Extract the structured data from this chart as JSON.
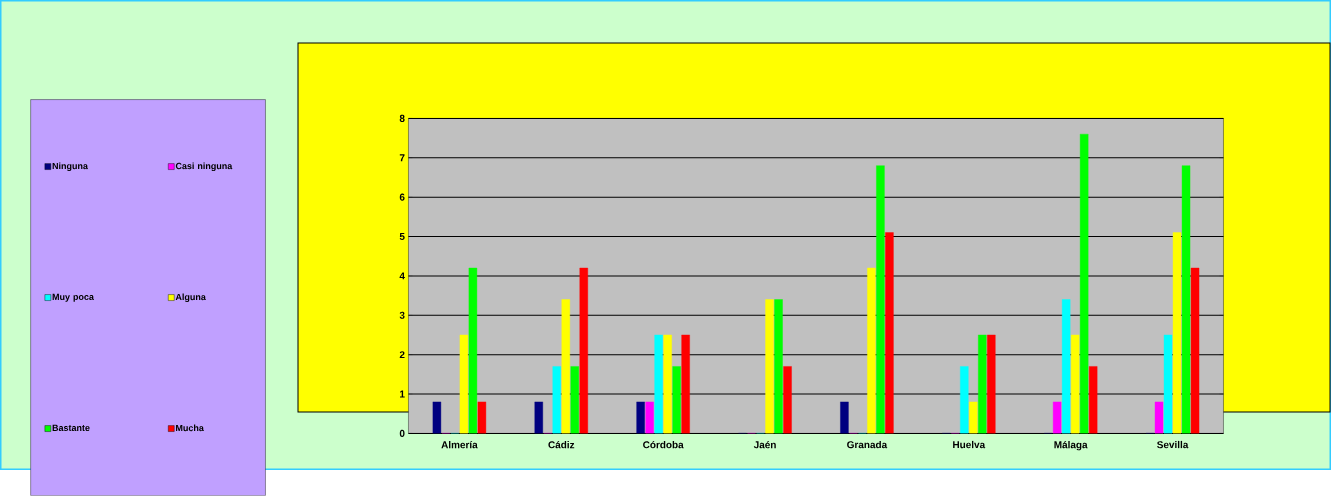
{
  "chart_data": {
    "type": "bar",
    "categories": [
      "Almería",
      "Cádiz",
      "Córdoba",
      "Jaén",
      "Granada",
      "Huelva",
      "Málaga",
      "Sevilla"
    ],
    "series": [
      {
        "name": "Ninguna",
        "color": "#000080",
        "values": [
          0.8,
          0.8,
          0.8,
          0,
          0.8,
          0,
          0,
          0
        ]
      },
      {
        "name": "Casi ninguna",
        "color": "#ff00ff",
        "values": [
          0,
          0,
          0.8,
          0,
          0,
          0,
          0.8,
          0.8
        ]
      },
      {
        "name": "Muy poca",
        "color": "#00ffff",
        "values": [
          0,
          1.7,
          2.5,
          0,
          0,
          1.7,
          3.4,
          2.5
        ]
      },
      {
        "name": "Alguna",
        "color": "#ffff00",
        "values": [
          2.5,
          3.4,
          2.5,
          3.4,
          4.2,
          0.8,
          2.5,
          5.1
        ]
      },
      {
        "name": "Bastante",
        "color": "#00ff00",
        "values": [
          4.2,
          1.7,
          1.7,
          3.4,
          6.8,
          2.5,
          7.6,
          6.8
        ]
      },
      {
        "name": "Mucha",
        "color": "#ff0000",
        "values": [
          0.8,
          4.2,
          2.5,
          1.7,
          5.1,
          2.5,
          1.7,
          4.2
        ]
      }
    ],
    "ylim": [
      0,
      8
    ],
    "yticks": [
      0,
      1,
      2,
      3,
      4,
      5,
      6,
      7,
      8
    ],
    "grid": "y",
    "legend": "left"
  }
}
